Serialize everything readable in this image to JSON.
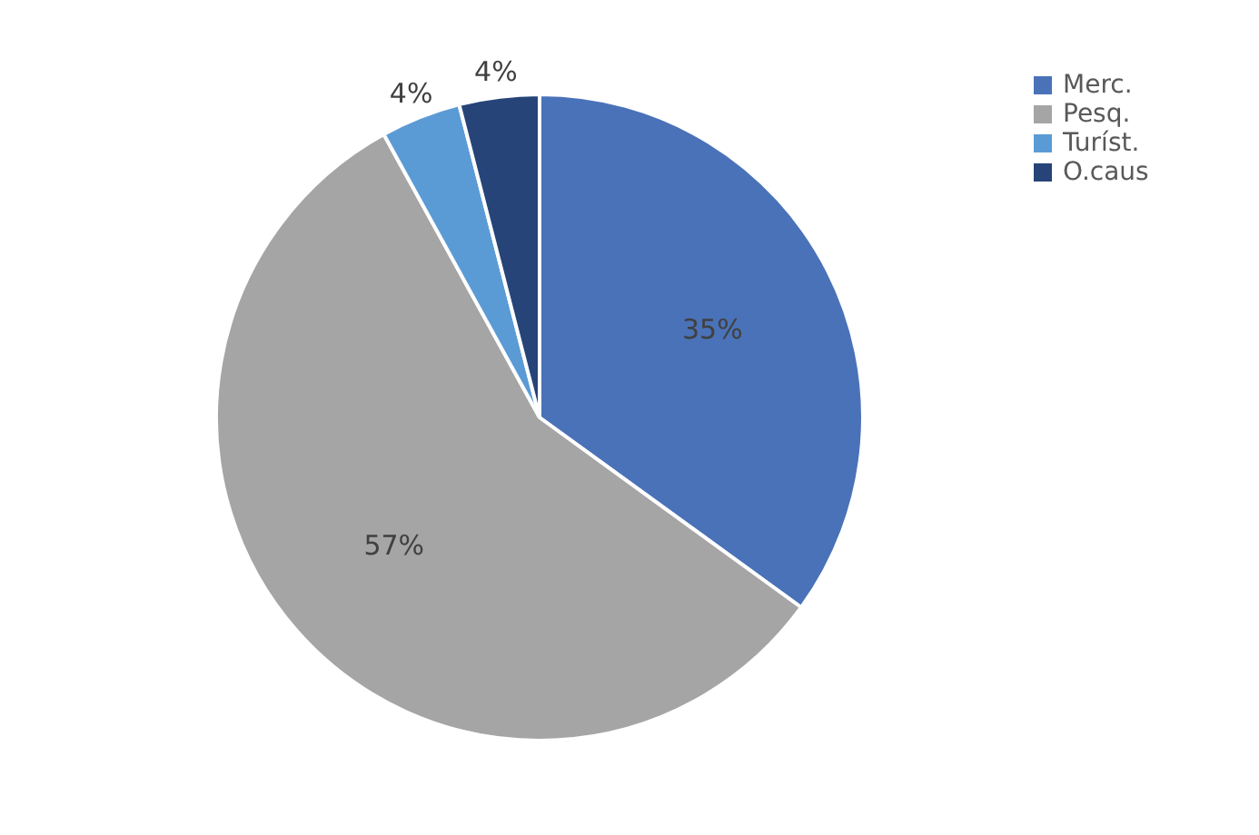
{
  "chart_data": {
    "type": "pie",
    "categories": [
      "Merc.",
      "Pesq.",
      "Turíst.",
      "O.caus"
    ],
    "values": [
      35,
      57,
      4,
      4
    ],
    "colors": [
      "#4a72b8",
      "#a5a5a5",
      "#5b9bd5",
      "#264478"
    ],
    "value_labels": [
      "35%",
      "57%",
      "4%",
      "4%"
    ],
    "legend": "right"
  }
}
